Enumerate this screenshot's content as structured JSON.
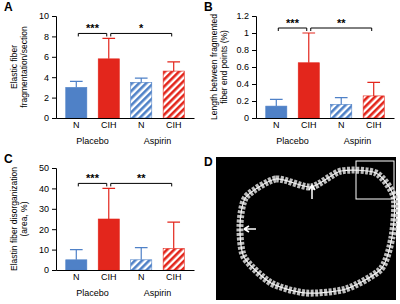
{
  "chart_data": [
    {
      "type": "bar",
      "title": "A",
      "y_label": "Elastic fiber fragmentation/section",
      "categories": [
        "N",
        "CIH",
        "N",
        "CIH"
      ],
      "groups": [
        "Placebo",
        "Aspirin"
      ],
      "values": [
        3.0,
        5.8,
        3.5,
        4.6
      ],
      "errors": [
        0.6,
        2.0,
        0.4,
        0.9
      ],
      "colors": [
        "#4f81c7",
        "#e3261c",
        "#4f81c7",
        "#e3261c"
      ],
      "ylim": [
        0,
        10
      ],
      "yticks": [
        0,
        2,
        4,
        6,
        8,
        10
      ],
      "annotations": [
        {
          "text": "***",
          "between": [
            0,
            1
          ]
        },
        {
          "text": "*",
          "between": [
            1,
            3
          ]
        }
      ]
    },
    {
      "type": "bar",
      "title": "B",
      "y_label": "Length between fragmented fiber end points (%)",
      "categories": [
        "N",
        "CIH",
        "N",
        "CIH"
      ],
      "groups": [
        "Placebo",
        "Aspirin"
      ],
      "values": [
        0.14,
        0.65,
        0.16,
        0.26
      ],
      "errors": [
        0.08,
        0.35,
        0.08,
        0.16
      ],
      "colors": [
        "#4f81c7",
        "#e3261c",
        "#4f81c7",
        "#e3261c"
      ],
      "ylim": [
        0,
        1.2
      ],
      "yticks": [
        0,
        0.2,
        0.4,
        0.6,
        0.8,
        1,
        1.2
      ],
      "annotations": [
        {
          "text": "***",
          "between": [
            0,
            1
          ]
        },
        {
          "text": "**",
          "between": [
            1,
            3
          ]
        }
      ]
    },
    {
      "type": "bar",
      "title": "C",
      "y_label": "Elastin fiber disorganization (area, %)",
      "categories": [
        "N",
        "CIH",
        "N",
        "CIH"
      ],
      "groups": [
        "Placebo",
        "Aspirin"
      ],
      "values": [
        5,
        25,
        5,
        10.5
      ],
      "errors": [
        5,
        15,
        6,
        13
      ],
      "colors": [
        "#4f81c7",
        "#e3261c",
        "#4f81c7",
        "#e3261c"
      ],
      "ylim": [
        0,
        50
      ],
      "yticks": [
        0,
        10,
        20,
        30,
        40,
        50
      ],
      "annotations": [
        {
          "text": "***",
          "between": [
            0,
            1
          ]
        },
        {
          "text": "**",
          "between": [
            1,
            3
          ]
        }
      ]
    },
    {
      "type": "image",
      "title": "D"
    }
  ]
}
